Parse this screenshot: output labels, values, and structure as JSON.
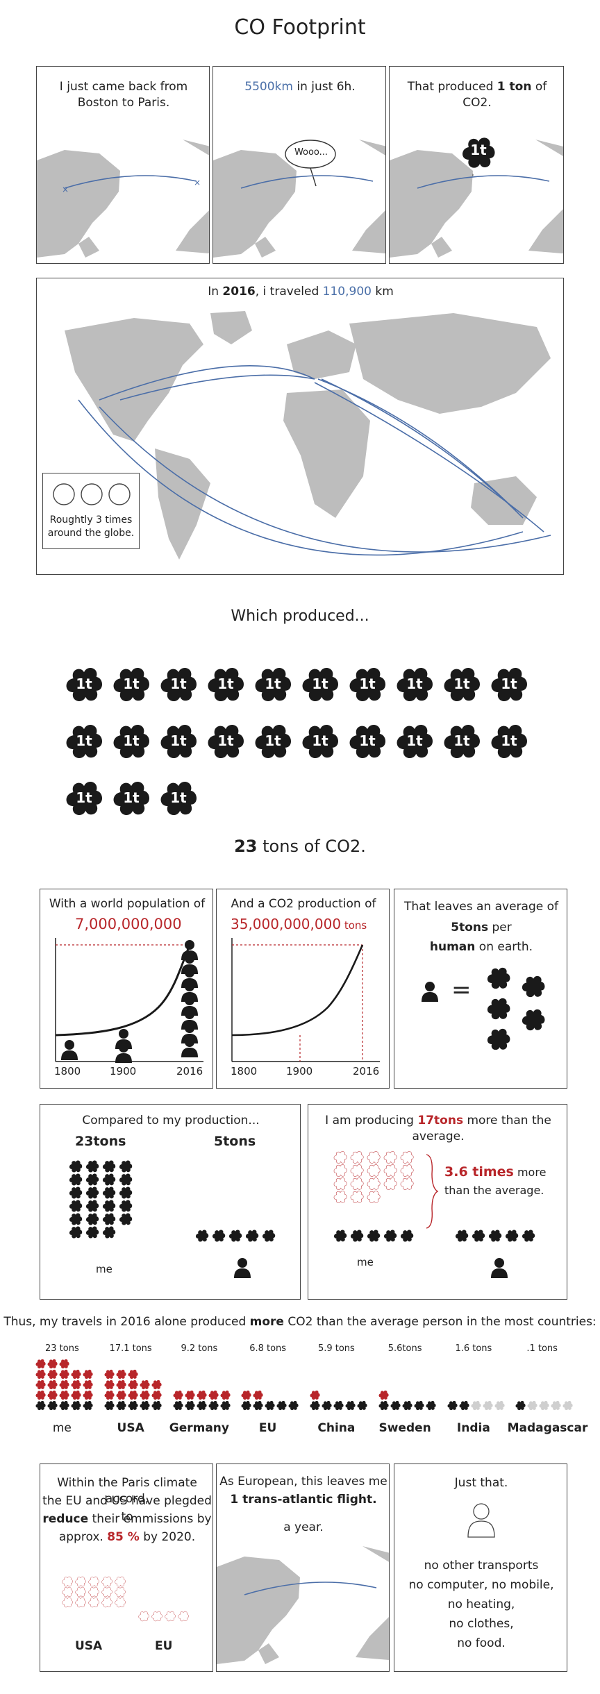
{
  "page_title": "CO Footprint",
  "row1": {
    "p1_text": "I just came back from Boston to Paris.",
    "p2_dist": "5500km",
    "p2_rest": " in just 6h.",
    "p2_bubble": "Wooo...",
    "p3_pre": "That produced ",
    "p3_bold": "1 ton",
    "p3_post": " of CO2.",
    "cloud_label": "1t"
  },
  "world": {
    "pre": "In ",
    "year": "2016",
    "mid": ", i traveled ",
    "km": "110,900",
    "post": " km",
    "globe_note": "Roughtly 3 times around the globe."
  },
  "which_produced": "Which produced...",
  "cloud_label": "1t",
  "cloud_count": 23,
  "tons_bold": "23",
  "tons_rest": " tons of CO2.",
  "population": {
    "title": "With a world population of",
    "value": "7,000,000,000",
    "ticks": [
      "1800",
      "1900",
      "2016"
    ]
  },
  "co2prod": {
    "title": "And a CO2 production of",
    "value": "35,000,000,000",
    "unit": " tons",
    "ticks": [
      "1800",
      "1900",
      "2016"
    ]
  },
  "average": {
    "l1": "That leaves an average of",
    "l2_bold": "5tons",
    "l2_rest": " per",
    "l3_bold": "human",
    "l3_rest": " on earth.",
    "eq": "="
  },
  "compare": {
    "title": "Compared to my production...",
    "me_tons": "23tons",
    "avg_tons": "5tons",
    "me_label": "me"
  },
  "more": {
    "pre": "I am producing ",
    "bold": "17tons",
    "post": " more than the average.",
    "times": "3.6 times",
    "times_rest": " more",
    "line2": "than the average.",
    "me_label": "me"
  },
  "countries_title": {
    "pre": "Thus, my travels in 2016 alone produced ",
    "bold": "more",
    "post": " CO2 than the average person in the most countries:"
  },
  "countries": [
    {
      "name": "me",
      "tons": "23 tons",
      "value": 23
    },
    {
      "name": "USA",
      "tons": "17.1 tons",
      "value": 17.1
    },
    {
      "name": "Germany",
      "tons": "9.2 tons",
      "value": 9.2
    },
    {
      "name": "EU",
      "tons": "6.8 tons",
      "value": 6.8
    },
    {
      "name": "China",
      "tons": "5.9 tons",
      "value": 5.9
    },
    {
      "name": "Sweden",
      "tons": "5.6tons",
      "value": 5.6
    },
    {
      "name": "India",
      "tons": "1.6 tons",
      "value": 1.6
    },
    {
      "name": "Madagascar",
      "tons": ".1 tons",
      "value": 0.1
    }
  ],
  "paris": {
    "l1": "Within the Paris climate accord,",
    "l2": "the EU and US have plegded to",
    "l3_bold": "reduce",
    "l3_rest": " their emmissions by",
    "l4_pre": "approx. ",
    "l4_red": "85 %",
    "l4_post": " by 2020.",
    "usa": "USA",
    "eu": "EU"
  },
  "european": {
    "l1": "As European, this leaves me",
    "l2_bold": "1 trans-atlantic flight.",
    "l3": "a year."
  },
  "just_that": {
    "title": "Just that.",
    "lines": [
      "no other transports",
      "no computer, no mobile,",
      "no heating,",
      "no clothes,",
      "no food."
    ]
  },
  "colors": {
    "route": "#4b6ea8",
    "accent_red": "#b8262a",
    "land": "#bdbdbd",
    "ink": "#1a1a1a"
  }
}
